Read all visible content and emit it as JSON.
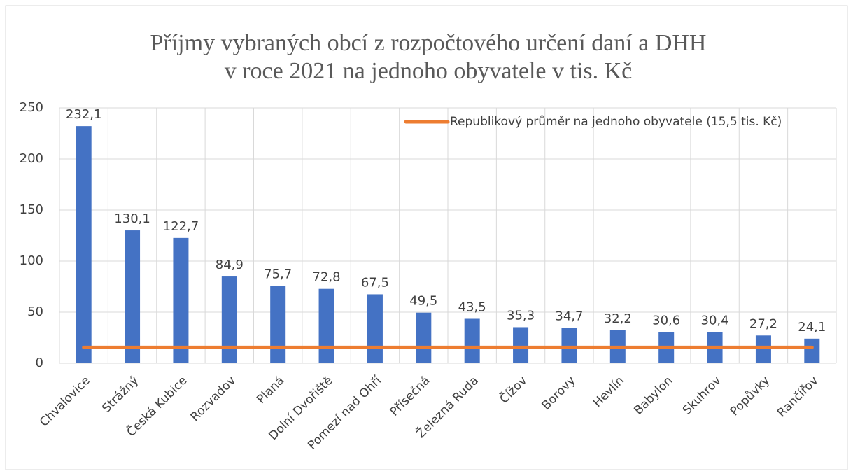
{
  "chart_data": {
    "type": "bar",
    "title": [
      "Příjmy vybraných obcí z rozpočtového určení daní a DHH",
      "v roce 2021 na jednoho obyvatele v tis. Kč"
    ],
    "categories": [
      "Chvalovice",
      "Strážný",
      "Česká Kubice",
      "Rozvadov",
      "Planá",
      "Dolní Dvořiště",
      "Pomezí nad Ohří",
      "Přísečná",
      "Železná Ruda",
      "Čížov",
      "Borovy",
      "Hevlín",
      "Babylon",
      "Skuhrov",
      "Popůvky",
      "Rančířov"
    ],
    "values": [
      232.1,
      130.1,
      122.7,
      84.9,
      75.7,
      72.8,
      67.5,
      49.5,
      43.5,
      35.3,
      34.7,
      32.2,
      30.6,
      30.4,
      27.2,
      24.1
    ],
    "value_labels": [
      "232,1",
      "130,1",
      "122,7",
      "84,9",
      "75,7",
      "72,8",
      "67,5",
      "49,5",
      "43,5",
      "35,3",
      "34,7",
      "32,2",
      "30,6",
      "30,4",
      "27,2",
      "24,1"
    ],
    "color": "#4472c4",
    "reference_line": {
      "name": "Republikový průměr na jednoho obyvatele (15,5 tis. Kč)",
      "value": 15.5,
      "color": "#ed7d31"
    },
    "ylim": [
      0,
      250
    ],
    "yticks": [
      0,
      50,
      100,
      150,
      200,
      250
    ],
    "grid": true
  }
}
